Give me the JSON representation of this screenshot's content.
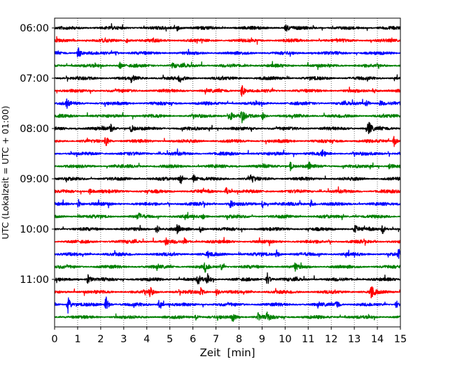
{
  "chart_data": {
    "type": "line",
    "xlabel": "Zeit  [min]",
    "ylabel": "UTC (Lokalzeit = UTC + 01:00)",
    "xlim": [
      0,
      15
    ],
    "x_ticks": [
      "0",
      "1",
      "2",
      "3",
      "4",
      "5",
      "6",
      "7",
      "8",
      "9",
      "10",
      "11",
      "12",
      "13",
      "14",
      "15"
    ],
    "y_ticks": [
      {
        "label": "06:00",
        "row": 0
      },
      {
        "label": "07:00",
        "row": 4
      },
      {
        "label": "08:00",
        "row": 8
      },
      {
        "label": "09:00",
        "row": 12
      },
      {
        "label": "10:00",
        "row": 16
      },
      {
        "label": "11:00",
        "row": 20
      }
    ],
    "vertical_grid": "dotted every 1 min",
    "row_duration_min": 15,
    "series_colors": [
      "#000000",
      "#ff0000",
      "#0000ff",
      "#008000"
    ],
    "series": [
      {
        "start": "06:00",
        "color": "#000000",
        "events": [
          {
            "t": 5.3,
            "amp": 0.35
          },
          {
            "t": 10.0,
            "amp": 0.45
          }
        ]
      },
      {
        "start": "06:15",
        "color": "#ff0000",
        "events": [
          {
            "t": 3.1,
            "amp": 0.25
          }
        ]
      },
      {
        "start": "06:30",
        "color": "#0000ff",
        "events": [
          {
            "t": 1.0,
            "amp": 0.8
          },
          {
            "t": 2.6,
            "amp": 0.3
          }
        ]
      },
      {
        "start": "06:45",
        "color": "#008000",
        "events": [
          {
            "t": 2.8,
            "amp": 0.4
          },
          {
            "t": 5.1,
            "amp": 0.3
          }
        ]
      },
      {
        "start": "07:00",
        "color": "#000000",
        "events": [
          {
            "t": 3.3,
            "amp": 0.4
          },
          {
            "t": 5.4,
            "amp": 0.45
          }
        ]
      },
      {
        "start": "07:15",
        "color": "#ff0000",
        "events": [
          {
            "t": 8.1,
            "amp": 0.9
          },
          {
            "t": 13.8,
            "amp": 0.3
          }
        ]
      },
      {
        "start": "07:30",
        "color": "#0000ff",
        "events": [
          {
            "t": 0.5,
            "amp": 0.45
          },
          {
            "t": 13.5,
            "amp": 0.4
          },
          {
            "t": 14.1,
            "amp": 0.35
          }
        ]
      },
      {
        "start": "07:45",
        "color": "#008000",
        "events": [
          {
            "t": 7.6,
            "amp": 0.6
          },
          {
            "t": 8.1,
            "amp": 0.8
          },
          {
            "t": 9.0,
            "amp": 0.4
          }
        ]
      },
      {
        "start": "08:00",
        "color": "#000000",
        "events": [
          {
            "t": 2.4,
            "amp": 0.55
          },
          {
            "t": 3.3,
            "amp": 0.45
          },
          {
            "t": 13.6,
            "amp": 0.9
          }
        ]
      },
      {
        "start": "08:15",
        "color": "#ff0000",
        "events": [
          {
            "t": 2.2,
            "amp": 0.6
          },
          {
            "t": 14.7,
            "amp": 0.6
          }
        ]
      },
      {
        "start": "08:30",
        "color": "#0000ff",
        "events": [
          {
            "t": 11.6,
            "amp": 0.4
          }
        ]
      },
      {
        "start": "08:45",
        "color": "#008000",
        "events": [
          {
            "t": 10.2,
            "amp": 0.5
          },
          {
            "t": 11.0,
            "amp": 0.5
          },
          {
            "t": 14.5,
            "amp": 0.4
          }
        ]
      },
      {
        "start": "09:00",
        "color": "#000000",
        "events": [
          {
            "t": 5.4,
            "amp": 0.5
          },
          {
            "t": 6.0,
            "amp": 0.45
          },
          {
            "t": 8.5,
            "amp": 0.6
          }
        ]
      },
      {
        "start": "09:15",
        "color": "#ff0000",
        "events": [
          {
            "t": 1.5,
            "amp": 0.4
          },
          {
            "t": 7.4,
            "amp": 0.6
          }
        ]
      },
      {
        "start": "09:30",
        "color": "#0000ff",
        "events": [
          {
            "t": 1.0,
            "amp": 0.6
          },
          {
            "t": 7.6,
            "amp": 0.45
          },
          {
            "t": 9.0,
            "amp": 0.45
          },
          {
            "t": 11.1,
            "amp": 0.5
          }
        ]
      },
      {
        "start": "09:45",
        "color": "#008000",
        "events": [
          {
            "t": 3.6,
            "amp": 0.4
          },
          {
            "t": 6.4,
            "amp": 0.4
          }
        ]
      },
      {
        "start": "10:00",
        "color": "#000000",
        "events": [
          {
            "t": 4.4,
            "amp": 0.6
          },
          {
            "t": 5.3,
            "amp": 0.5
          },
          {
            "t": 6.3,
            "amp": 0.4
          },
          {
            "t": 13.0,
            "amp": 0.5
          },
          {
            "t": 14.2,
            "amp": 0.6
          }
        ]
      },
      {
        "start": "10:15",
        "color": "#ff0000",
        "events": [
          {
            "t": 4.8,
            "amp": 0.35
          },
          {
            "t": 5.6,
            "amp": 0.35
          }
        ]
      },
      {
        "start": "10:30",
        "color": "#0000ff",
        "events": [
          {
            "t": 6.6,
            "amp": 0.35
          },
          {
            "t": 9.6,
            "amp": 0.45
          },
          {
            "t": 14.9,
            "amp": 0.5
          }
        ]
      },
      {
        "start": "10:45",
        "color": "#008000",
        "events": [
          {
            "t": 6.5,
            "amp": 0.55
          },
          {
            "t": 7.2,
            "amp": 0.4
          },
          {
            "t": 10.4,
            "amp": 0.4
          }
        ]
      },
      {
        "start": "11:00",
        "color": "#000000",
        "events": [
          {
            "t": 1.4,
            "amp": 0.7
          },
          {
            "t": 6.2,
            "amp": 0.6
          },
          {
            "t": 6.6,
            "amp": 0.55
          },
          {
            "t": 9.2,
            "amp": 0.8
          }
        ]
      },
      {
        "start": "11:15",
        "color": "#ff0000",
        "events": [
          {
            "t": 4.1,
            "amp": 0.6
          },
          {
            "t": 6.3,
            "amp": 0.5
          },
          {
            "t": 7.0,
            "amp": 0.45
          },
          {
            "t": 13.7,
            "amp": 1.0
          }
        ]
      },
      {
        "start": "11:30",
        "color": "#0000ff",
        "events": [
          {
            "t": 0.55,
            "amp": 1.0
          },
          {
            "t": 2.2,
            "amp": 1.0
          },
          {
            "t": 4.5,
            "amp": 0.5
          },
          {
            "t": 12.2,
            "amp": 0.6
          },
          {
            "t": 14.8,
            "amp": 0.45
          }
        ]
      },
      {
        "start": "11:45",
        "color": "#008000",
        "events": [
          {
            "t": 6.1,
            "amp": 0.4
          },
          {
            "t": 7.7,
            "amp": 0.5
          },
          {
            "t": 8.8,
            "amp": 0.45
          },
          {
            "t": 9.2,
            "amp": 0.5
          }
        ]
      }
    ]
  }
}
